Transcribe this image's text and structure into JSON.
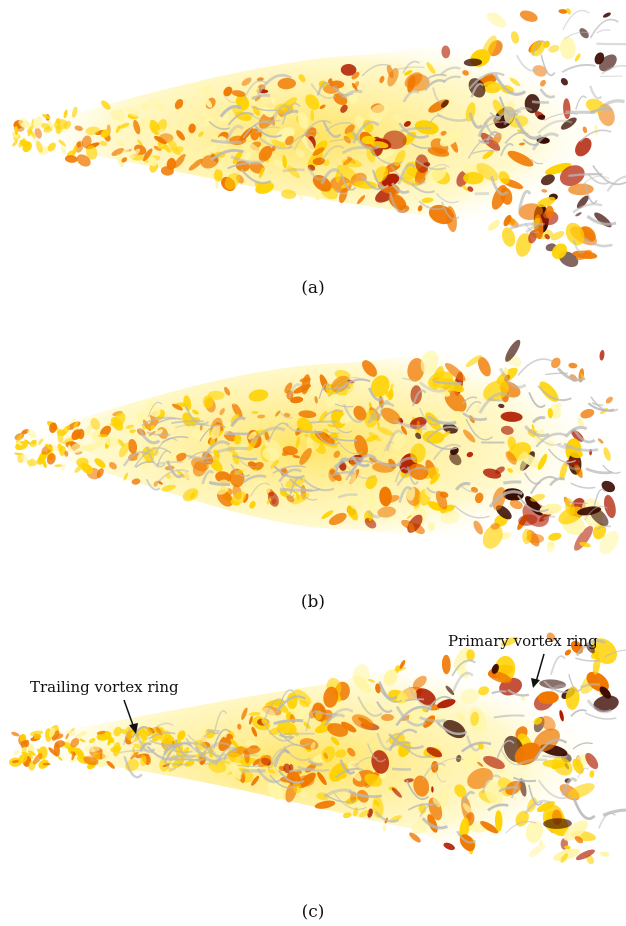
{
  "figure": {
    "panels": [
      {
        "caption": "(a)"
      },
      {
        "caption": "(b)"
      },
      {
        "caption": "(c)"
      }
    ],
    "annotations": {
      "trailing": "Trailing vortex ring",
      "primary": "Primary vortex ring"
    },
    "colors": {
      "hot_dark": "#3a0a00",
      "hot_red": "#b01a00",
      "hot_orange": "#f07800",
      "hot_yellow": "#ffd200",
      "hot_pale": "#fff6a8",
      "vortex_gray": "#b9b9b9"
    }
  }
}
